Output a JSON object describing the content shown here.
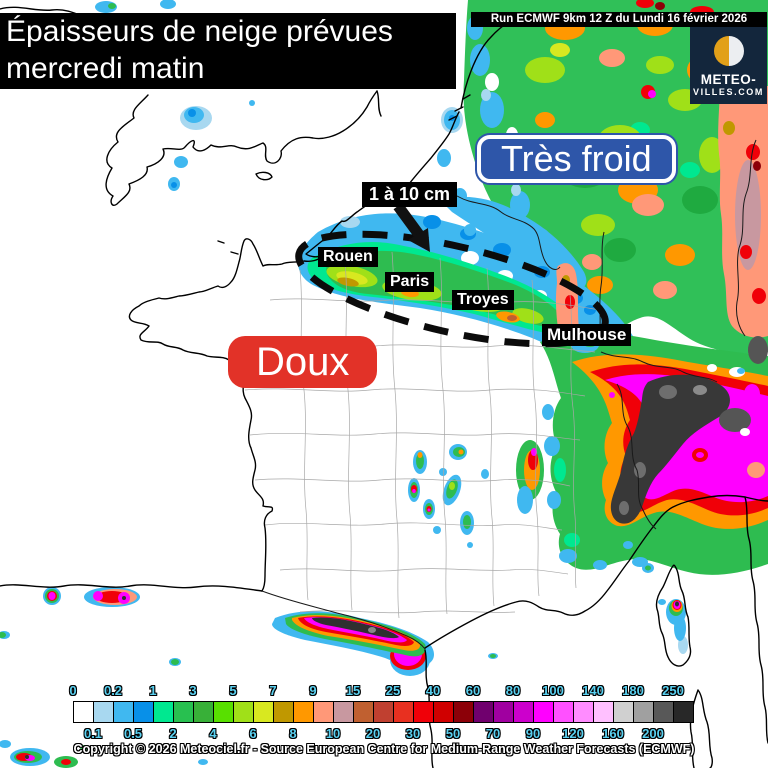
{
  "title": {
    "line1": "Épaisseurs de neige prévues",
    "line2": "mercredi matin"
  },
  "run_info": "Run ECMWF 9km 12 Z du Lundi 16 février 2026",
  "logo": {
    "line1": "METEO-",
    "line2": "VILLES.COM"
  },
  "annotations": {
    "cold_label": "Très froid",
    "cold_color": "#2e56a9",
    "mild_label": "Doux",
    "mild_color": "#e23228",
    "band_label": "1 à 10 cm"
  },
  "cities": [
    {
      "label": "Rouen"
    },
    {
      "label": "Paris"
    },
    {
      "label": "Troyes"
    },
    {
      "label": "Mulhouse"
    }
  ],
  "legend": {
    "label_color": "#5ad0f0",
    "top_labels": [
      "0",
      "0.2",
      "1",
      "3",
      "5",
      "7",
      "9",
      "15",
      "25",
      "40",
      "60",
      "80",
      "100",
      "140",
      "180",
      "250"
    ],
    "bottom_labels": [
      "0.1",
      "0.5",
      "2",
      "4",
      "6",
      "8",
      "10",
      "20",
      "30",
      "50",
      "70",
      "90",
      "120",
      "160",
      "200"
    ],
    "colors": [
      "#ffffff",
      "#a8d8f0",
      "#40b8f0",
      "#0890e8",
      "#00e890",
      "#28c050",
      "#38b038",
      "#58e000",
      "#a0e018",
      "#d8e820",
      "#c09800",
      "#ff9800",
      "#ff9878",
      "#c898a0",
      "#c06030",
      "#c04030",
      "#e83020",
      "#f00008",
      "#d00000",
      "#8c0008",
      "#70006e",
      "#a000a0",
      "#cc00cc",
      "#ff00ff",
      "#ff50ff",
      "#ff8cff",
      "#ffc0ff",
      "#d0d0d0",
      "#a0a0a0",
      "#585858",
      "#282828"
    ]
  },
  "copyright": "Copyright © 2026 Meteociel.fr - Source European Centre for Medium-Range Weather Forecasts (ECMWF)"
}
